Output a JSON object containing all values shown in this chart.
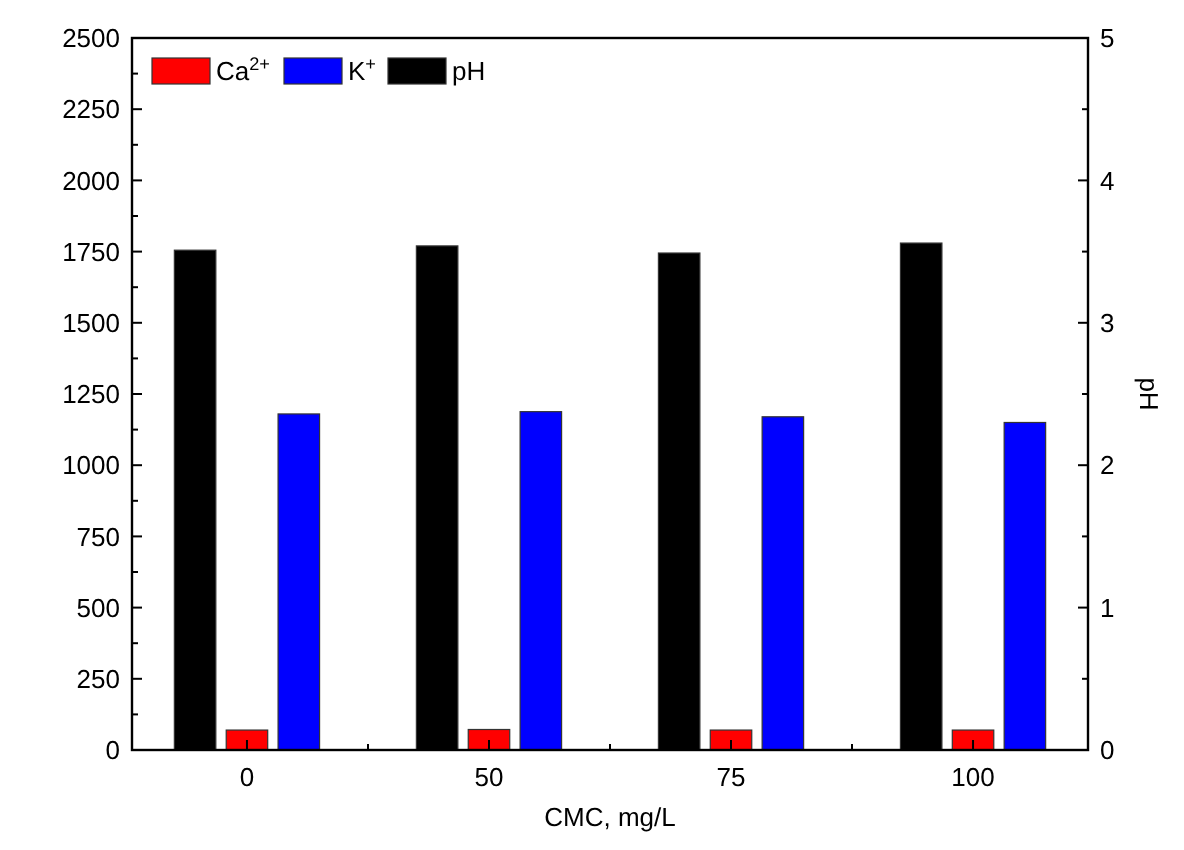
{
  "chart_data": {
    "type": "bar",
    "xlabel": "CMC, mg/L",
    "y2label": "pH",
    "categories": [
      "0",
      "50",
      "75",
      "100"
    ],
    "series": [
      {
        "name": "Ca$^{2+}$",
        "color": "#ff0000",
        "values": [
          70,
          72,
          70,
          70
        ]
      },
      {
        "name": "K$^{+}$",
        "color": "#0000ff",
        "values": [
          1180,
          1188,
          1170,
          1150
        ]
      },
      {
        "name": "pH",
        "color": "#000000",
        "axis": "y2",
        "values": [
          3.51,
          3.54,
          3.49,
          3.56
        ]
      }
    ],
    "ylim": [
      0,
      2500
    ],
    "yticks": [
      0,
      250,
      500,
      750,
      1000,
      1250,
      1500,
      1750,
      2000,
      2250,
      2500
    ],
    "y2lim": [
      0,
      5
    ],
    "y2ticks": [
      0,
      1,
      2,
      3,
      4,
      5
    ],
    "legend": "top left",
    "grid": false
  }
}
